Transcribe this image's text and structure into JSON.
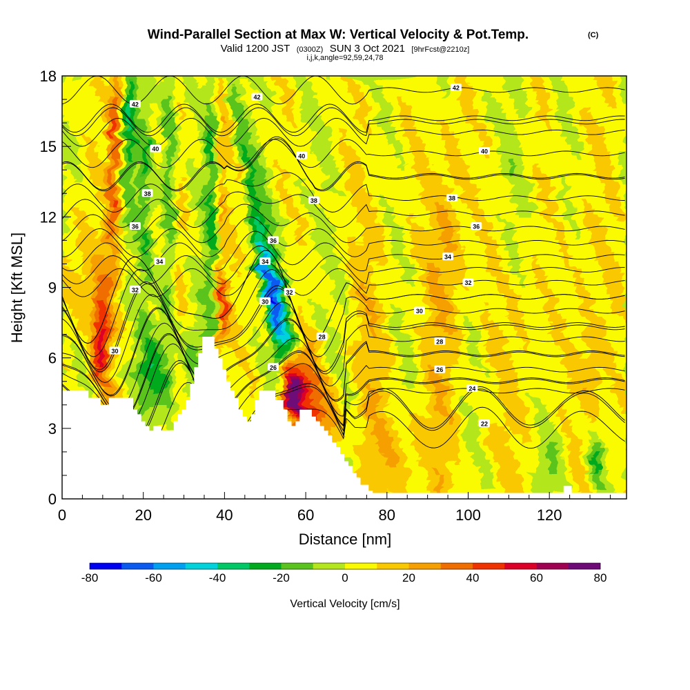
{
  "chart_data": {
    "type": "heatmap",
    "title": "Wind-Parallel Section at Max W: Vertical Velocity & Pot.Temp.",
    "title_mark": "(C)",
    "subtitle_parts": [
      "Valid 1200 JST",
      "(0300Z)",
      "SUN 3 Oct 2021",
      "[9hrFcst@2210z]"
    ],
    "subtitle2": "i,j,k,angle=92,59,24,78",
    "xlabel": "Distance [nm]",
    "ylabel": "Height [Kft MSL]",
    "xlim": [
      0,
      139
    ],
    "ylim": [
      0,
      18
    ],
    "x_ticks": [
      0,
      20,
      40,
      60,
      80,
      100,
      120
    ],
    "y_ticks": [
      0,
      3,
      6,
      9,
      12,
      15,
      18
    ],
    "x_tick_labels": [
      "0",
      "20",
      "40",
      "60",
      "80",
      "100",
      "120"
    ],
    "y_tick_labels": [
      "0",
      "3",
      "6",
      "9",
      "12",
      "15",
      "18"
    ],
    "colorbar": {
      "title": "Vertical Velocity [cm/s]",
      "min": -80,
      "max": 80,
      "step": 10,
      "tick_values": [
        -80,
        -60,
        -40,
        -20,
        0,
        20,
        40,
        60,
        80
      ],
      "tick_labels": [
        "-80",
        "-60",
        "-40",
        "-20",
        "0",
        "20",
        "40",
        "60",
        "80"
      ],
      "colors": [
        "#0000f0",
        "#0a5af0",
        "#00a0f0",
        "#00d2dc",
        "#00c864",
        "#00aa1e",
        "#5ac31e",
        "#b4e61e",
        "#fafa00",
        "#fac800",
        "#f5a000",
        "#f06e00",
        "#f03200",
        "#dc0028",
        "#a00050",
        "#6e0a78"
      ]
    },
    "terrain_profile": [
      [
        0,
        4.6
      ],
      [
        6.5,
        4.6
      ],
      [
        6.5,
        4.3
      ],
      [
        9.5,
        4.3
      ],
      [
        9.5,
        4.0
      ],
      [
        11.5,
        4.0
      ],
      [
        11.5,
        4.3
      ],
      [
        17.5,
        4.3
      ],
      [
        17.5,
        3.8
      ],
      [
        18.5,
        3.8
      ],
      [
        18.5,
        3.6
      ],
      [
        19.5,
        3.6
      ],
      [
        19.5,
        3.3
      ],
      [
        20.5,
        3.3
      ],
      [
        20.5,
        3.1
      ],
      [
        21.5,
        3.1
      ],
      [
        21.5,
        2.9
      ],
      [
        22.5,
        2.9
      ],
      [
        22.5,
        3.1
      ],
      [
        24.5,
        3.1
      ],
      [
        24.5,
        2.9
      ],
      [
        27.5,
        2.9
      ],
      [
        27.5,
        3.3
      ],
      [
        28.5,
        3.3
      ],
      [
        28.5,
        3.6
      ],
      [
        29.5,
        3.6
      ],
      [
        29.5,
        3.8
      ],
      [
        30.5,
        3.8
      ],
      [
        30.5,
        4.2
      ],
      [
        31.5,
        4.2
      ],
      [
        31.5,
        4.9
      ],
      [
        32.5,
        4.9
      ],
      [
        32.5,
        5.6
      ],
      [
        33.5,
        5.6
      ],
      [
        33.5,
        6.2
      ],
      [
        34.5,
        6.2
      ],
      [
        34.5,
        6.9
      ],
      [
        37.5,
        6.9
      ],
      [
        37.5,
        6.4
      ],
      [
        38.5,
        6.4
      ],
      [
        38.5,
        6.0
      ],
      [
        39.5,
        6.0
      ],
      [
        39.5,
        5.5
      ],
      [
        40.5,
        5.5
      ],
      [
        40.5,
        5.0
      ],
      [
        41.5,
        5.0
      ],
      [
        41.5,
        4.6
      ],
      [
        42.5,
        4.6
      ],
      [
        42.5,
        4.3
      ],
      [
        43.5,
        4.3
      ],
      [
        43.5,
        3.8
      ],
      [
        44.5,
        3.8
      ],
      [
        44.5,
        3.5
      ],
      [
        45.5,
        3.5
      ],
      [
        45.5,
        3.3
      ],
      [
        46.5,
        3.3
      ],
      [
        46.5,
        3.6
      ],
      [
        47.5,
        3.6
      ],
      [
        47.5,
        4.2
      ],
      [
        48.5,
        4.2
      ],
      [
        48.5,
        4.6
      ],
      [
        52.5,
        4.6
      ],
      [
        52.5,
        4.2
      ],
      [
        54.5,
        4.2
      ],
      [
        54.5,
        3.8
      ],
      [
        55.5,
        3.8
      ],
      [
        55.5,
        3.3
      ],
      [
        56.5,
        3.3
      ],
      [
        56.5,
        3.1
      ],
      [
        57.5,
        3.1
      ],
      [
        57.5,
        3.3
      ],
      [
        58.5,
        3.3
      ],
      [
        58.5,
        3.8
      ],
      [
        61.5,
        3.8
      ],
      [
        61.5,
        3.5
      ],
      [
        62.5,
        3.5
      ],
      [
        62.5,
        3.3
      ],
      [
        63.5,
        3.3
      ],
      [
        63.5,
        3.1
      ],
      [
        64.5,
        3.1
      ],
      [
        64.5,
        2.9
      ],
      [
        65.5,
        2.9
      ],
      [
        65.5,
        2.7
      ],
      [
        66.5,
        2.7
      ],
      [
        66.5,
        2.4
      ],
      [
        67.5,
        2.4
      ],
      [
        67.5,
        2.2
      ],
      [
        68.5,
        2.2
      ],
      [
        68.5,
        1.9
      ],
      [
        69.5,
        1.9
      ],
      [
        69.5,
        1.6
      ],
      [
        70.5,
        1.6
      ],
      [
        70.5,
        1.4
      ],
      [
        71.5,
        1.4
      ],
      [
        71.5,
        1.1
      ],
      [
        72.5,
        1.1
      ],
      [
        72.5,
        0.9
      ],
      [
        73.5,
        0.9
      ],
      [
        73.5,
        0.6
      ],
      [
        75.5,
        0.6
      ],
      [
        75.5,
        0.35
      ],
      [
        76.5,
        0.35
      ],
      [
        76.5,
        0.25
      ],
      [
        123.5,
        0.25
      ],
      [
        123.5,
        0.55
      ],
      [
        125.5,
        0.55
      ],
      [
        125.5,
        0.25
      ],
      [
        139,
        0.25
      ]
    ],
    "theta_contours": [
      {
        "label": "22",
        "x": 104,
        "y": 3.2
      },
      {
        "label": "24",
        "x": 101,
        "y": 4.7
      },
      {
        "label": "26",
        "x": 93,
        "y": 5.5
      },
      {
        "label": "26",
        "x": 52,
        "y": 5.6
      },
      {
        "label": "28",
        "x": 93,
        "y": 6.7
      },
      {
        "label": "28",
        "x": 64,
        "y": 6.9
      },
      {
        "label": "30",
        "x": 88,
        "y": 8.0
      },
      {
        "label": "30",
        "x": 13,
        "y": 6.3
      },
      {
        "label": "30",
        "x": 50,
        "y": 8.4
      },
      {
        "label": "32",
        "x": 100,
        "y": 9.2
      },
      {
        "label": "32",
        "x": 56,
        "y": 8.8
      },
      {
        "label": "32",
        "x": 18,
        "y": 8.9
      },
      {
        "label": "34",
        "x": 95,
        "y": 10.3
      },
      {
        "label": "34",
        "x": 50,
        "y": 10.1
      },
      {
        "label": "34",
        "x": 24,
        "y": 10.1
      },
      {
        "label": "36",
        "x": 102,
        "y": 11.6
      },
      {
        "label": "36",
        "x": 52,
        "y": 11.0
      },
      {
        "label": "36",
        "x": 18,
        "y": 11.6
      },
      {
        "label": "38",
        "x": 96,
        "y": 12.8
      },
      {
        "label": "38",
        "x": 62,
        "y": 12.7
      },
      {
        "label": "38",
        "x": 21,
        "y": 13.0
      },
      {
        "label": "40",
        "x": 104,
        "y": 14.8
      },
      {
        "label": "40",
        "x": 59,
        "y": 14.6
      },
      {
        "label": "40",
        "x": 23,
        "y": 14.9
      },
      {
        "label": "42",
        "x": 97,
        "y": 17.5
      },
      {
        "label": "42",
        "x": 48,
        "y": 17.1
      },
      {
        "label": "42",
        "x": 18,
        "y": 16.8
      }
    ]
  }
}
